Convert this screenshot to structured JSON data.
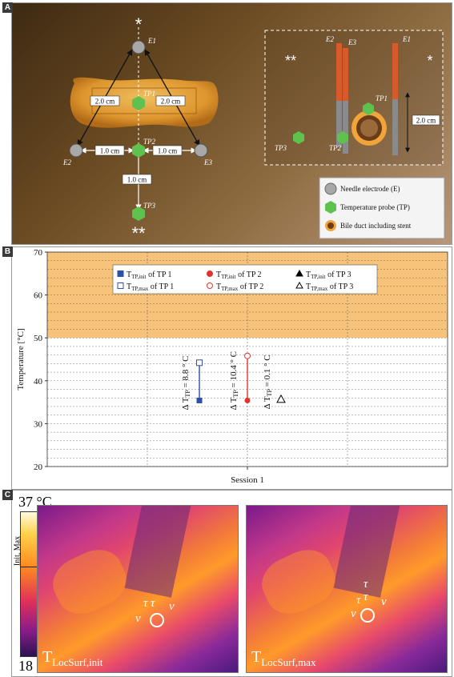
{
  "panels": {
    "a": {
      "letter": "A",
      "labels": {
        "star_top": "*",
        "stars_bottom": "**",
        "e1": "E1",
        "e2": "E2",
        "e3": "E3",
        "tp1": "TP1",
        "tp2": "TP2",
        "tp3": "TP3",
        "dist_e1_left": "2.0 cm",
        "dist_e1_right": "2.0 cm",
        "dist_e2_tp2": "1.0 cm",
        "dist_tp2_e3": "1.0 cm",
        "dist_tp2_tp3": "1.0 cm"
      },
      "inset": {
        "stars_left": "**",
        "star_right": "*",
        "e1": "E1",
        "e2": "E2",
        "e3": "E3",
        "tp1": "TP1",
        "tp2": "TP2",
        "tp3": "TP3",
        "length": "2.0 cm"
      },
      "legend": [
        {
          "label": "Needle electrode (E)",
          "icon": "gray-circle-icon"
        },
        {
          "label": "Temperature probe (TP)",
          "icon": "green-hexagon-icon"
        },
        {
          "label": "Bile duct including stent",
          "icon": "bile-duct-stent-icon"
        }
      ],
      "colors": {
        "electrode": "#a8a8a8",
        "probe": "#5fc24f",
        "tissue": "#e8a23a"
      }
    },
    "b": {
      "letter": "B",
      "chart_data": {
        "type": "scatter",
        "xlabel": "Session 1",
        "ylabel": "Temperature [°C]",
        "ylim": [
          20,
          70
        ],
        "yticks": [
          20,
          30,
          40,
          50,
          60,
          70
        ],
        "highlight_band": [
          50,
          70
        ],
        "highlight_color": "#f7c27a",
        "grid": true,
        "legend_position": "top",
        "legend": [
          {
            "main": "T",
            "sub": "TP,init",
            "rest": " of TP 1"
          },
          {
            "main": "T",
            "sub": "TP,init",
            "rest": " of TP 2"
          },
          {
            "main": "T",
            "sub": "TP,init",
            "rest": " of TP 3"
          },
          {
            "main": "T",
            "sub": "TP,max",
            "rest": " of TP 1"
          },
          {
            "main": "T",
            "sub": "TP,max",
            "rest": " of TP 2"
          },
          {
            "main": "T",
            "sub": "TP,max",
            "rest": " of TP 3"
          }
        ],
        "series": [
          {
            "name": "TP 1",
            "color": "#2f4fa8",
            "init": 35.4,
            "max": 44.2,
            "delta_label": "Δ T",
            "delta_sub": "TP",
            "delta_value": " = 8.8 ° C"
          },
          {
            "name": "TP 2",
            "color": "#e0332e",
            "init": 35.4,
            "max": 45.8,
            "delta_label": "Δ T",
            "delta_sub": "TP",
            "delta_value": " = 10.4 ° C"
          },
          {
            "name": "TP 3",
            "color": "#000000",
            "init": 35.6,
            "max": 35.7,
            "delta_label": "Δ T",
            "delta_sub": "TP",
            "delta_value": " = 0.1 ° C"
          }
        ]
      }
    },
    "c": {
      "letter": "C",
      "colorbar": {
        "top": "37 °C",
        "bottom": "18 °C",
        "label": "Init, Max"
      },
      "images": [
        {
          "label_main": "T",
          "label_sub": "LocSurf,init",
          "markers": [
            "τ",
            "τ",
            "ν",
            "ν"
          ]
        },
        {
          "label_main": "T",
          "label_sub": "LocSurf,max",
          "markers": [
            "τ",
            "τ",
            "τ",
            "ν",
            "ν"
          ]
        }
      ]
    }
  }
}
